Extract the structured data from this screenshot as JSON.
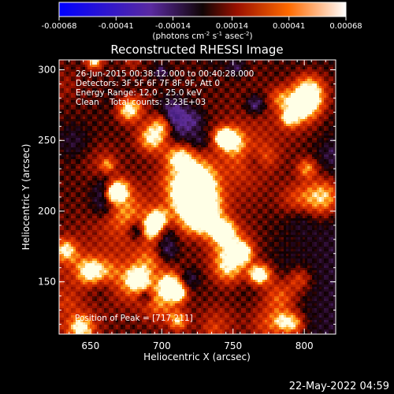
{
  "chart_data": {
    "type": "heatmap",
    "title": "Reconstructed RHESSI Image",
    "xlabel": "Heliocentric X (arcsec)",
    "ylabel": "Heliocentric Y (arcsec)",
    "xlim": [
      628,
      822
    ],
    "ylim": [
      113,
      307
    ],
    "xticks": [
      650,
      700,
      750,
      800
    ],
    "yticks": [
      150,
      200,
      250,
      300
    ],
    "x_tick_labels": [
      "650",
      "700",
      "750",
      "800"
    ],
    "y_tick_labels": [
      "150",
      "200",
      "250",
      "300"
    ],
    "colorbar": {
      "tick_values": [
        -0.00068,
        -0.00041,
        -0.00014,
        0.00014,
        0.00041,
        0.00068
      ],
      "tick_labels": [
        "-0.00068",
        "-0.00041",
        "-0.00014",
        "0.00014",
        "0.00041",
        "0.00068"
      ],
      "units_prefix": "(photons cm",
      "units_sup1": "-2",
      "units_mid1": " s",
      "units_sup2": "-1",
      "units_mid2": " asec",
      "units_sup3": "-2",
      "units_suffix": ")"
    },
    "info_lines": [
      "26-Jun-2015 00:38:12.000 to 00:40:28.000",
      "Detectors: 3F 5F 6F 7F 8F 9F, Att 0",
      "Energy Range: 12.0 - 25.0 keV",
      "Clean    Total counts: 3.23E+03"
    ],
    "peak_label": "Position of Peak = [717,211]",
    "peak": [
      717,
      211
    ]
  },
  "footer": {
    "timestamp": "22-May-2022 04:59"
  }
}
